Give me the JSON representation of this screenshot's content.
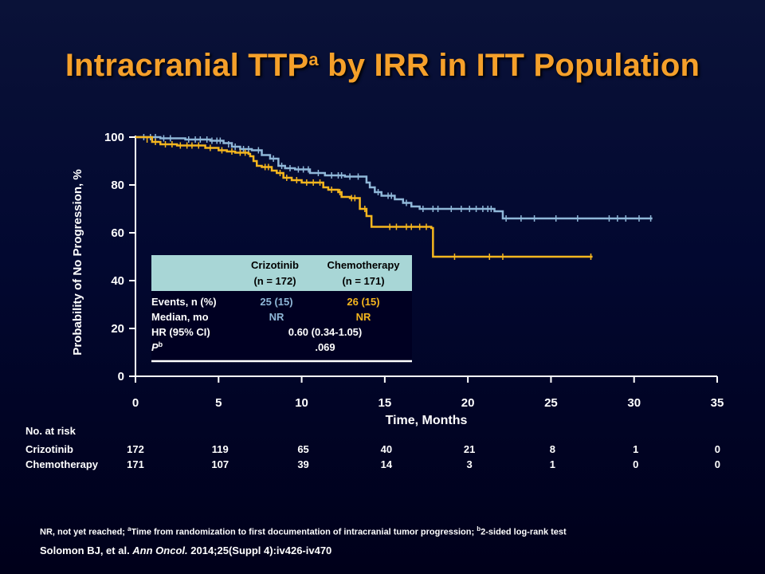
{
  "title": {
    "main": "Intracranial TTP",
    "sup": "a",
    "rest": " by IRR in ITT Population"
  },
  "chart_data": {
    "type": "line",
    "xlabel": "Time, Months",
    "ylabel": "Probability of No Progression, %",
    "xlim": [
      0,
      35
    ],
    "ylim": [
      0,
      100
    ],
    "xticks": [
      0,
      5,
      10,
      15,
      20,
      25,
      30,
      35
    ],
    "yticks": [
      0,
      20,
      40,
      60,
      80,
      100
    ],
    "series": [
      {
        "name": "Crizotinib",
        "color": "#8fb7d8",
        "steps": [
          [
            0,
            100
          ],
          [
            1.5,
            99.5
          ],
          [
            3,
            99
          ],
          [
            4.5,
            98.5
          ],
          [
            5.3,
            97.5
          ],
          [
            5.8,
            96
          ],
          [
            6.3,
            95
          ],
          [
            7,
            94.5
          ],
          [
            7.6,
            92.5
          ],
          [
            8.1,
            91
          ],
          [
            8.6,
            88
          ],
          [
            9,
            87
          ],
          [
            9.6,
            86.5
          ],
          [
            10.5,
            85
          ],
          [
            11.4,
            84
          ],
          [
            12.6,
            83.5
          ],
          [
            13.9,
            81
          ],
          [
            14.1,
            79
          ],
          [
            14.4,
            77
          ],
          [
            14.8,
            75.5
          ],
          [
            15.6,
            74
          ],
          [
            16.1,
            72.5
          ],
          [
            16.6,
            71
          ],
          [
            17.1,
            70
          ],
          [
            21.6,
            69
          ],
          [
            22.1,
            66
          ],
          [
            31.1,
            66
          ]
        ],
        "censors": [
          [
            0.5,
            100
          ],
          [
            0.9,
            100
          ],
          [
            1.2,
            100
          ],
          [
            1.7,
            99.5
          ],
          [
            2.1,
            99.5
          ],
          [
            3.2,
            99
          ],
          [
            3.6,
            99
          ],
          [
            3.9,
            99
          ],
          [
            4.3,
            99
          ],
          [
            4.6,
            98.5
          ],
          [
            4.9,
            98.5
          ],
          [
            5.1,
            98.5
          ],
          [
            5.6,
            97
          ],
          [
            6,
            96
          ],
          [
            6.5,
            95
          ],
          [
            6.8,
            95
          ],
          [
            7.4,
            94.5
          ],
          [
            8.3,
            91
          ],
          [
            8.8,
            88
          ],
          [
            9.3,
            87
          ],
          [
            9.8,
            86.5
          ],
          [
            10.1,
            86.5
          ],
          [
            10.4,
            86.5
          ],
          [
            11,
            85
          ],
          [
            11.8,
            84
          ],
          [
            12.2,
            84
          ],
          [
            12.4,
            84
          ],
          [
            12.9,
            83.5
          ],
          [
            13.4,
            83.5
          ],
          [
            14.6,
            77
          ],
          [
            15.2,
            75.5
          ],
          [
            15.4,
            75.5
          ],
          [
            16.3,
            72.5
          ],
          [
            17.3,
            70
          ],
          [
            17.9,
            70
          ],
          [
            18.2,
            70
          ],
          [
            19,
            70
          ],
          [
            19.6,
            70
          ],
          [
            20.1,
            70
          ],
          [
            20.5,
            70
          ],
          [
            20.9,
            70
          ],
          [
            21.2,
            70
          ],
          [
            21.4,
            70
          ],
          [
            22.3,
            66
          ],
          [
            23.2,
            66
          ],
          [
            24,
            66
          ],
          [
            25.3,
            66
          ],
          [
            26.6,
            66
          ],
          [
            28.5,
            66
          ],
          [
            29,
            66
          ],
          [
            29.5,
            66
          ],
          [
            30.3,
            66
          ],
          [
            31,
            66
          ]
        ]
      },
      {
        "name": "Chemotherapy",
        "color": "#f5b61e",
        "steps": [
          [
            0,
            100
          ],
          [
            1,
            98
          ],
          [
            1.5,
            97
          ],
          [
            2.5,
            96.5
          ],
          [
            4.2,
            95.5
          ],
          [
            5,
            94.5
          ],
          [
            5.5,
            94
          ],
          [
            6,
            93.5
          ],
          [
            6.8,
            93
          ],
          [
            6.9,
            92
          ],
          [
            7.1,
            90
          ],
          [
            7.3,
            88
          ],
          [
            7.6,
            87.5
          ],
          [
            8.2,
            86
          ],
          [
            8.5,
            85
          ],
          [
            8.9,
            83
          ],
          [
            9.4,
            82
          ],
          [
            10,
            81
          ],
          [
            11.3,
            79
          ],
          [
            11.6,
            78
          ],
          [
            12.2,
            77
          ],
          [
            12.4,
            75
          ],
          [
            12.9,
            74.5
          ],
          [
            13.5,
            70
          ],
          [
            13.9,
            67
          ],
          [
            14.2,
            62.5
          ],
          [
            17.8,
            62
          ],
          [
            17.9,
            50
          ],
          [
            27.5,
            50
          ]
        ],
        "censors": [
          [
            0.7,
            99
          ],
          [
            1.2,
            98
          ],
          [
            1.8,
            97
          ],
          [
            2.2,
            97
          ],
          [
            2.7,
            96.5
          ],
          [
            3.1,
            96.5
          ],
          [
            3.4,
            96.5
          ],
          [
            3.8,
            96.5
          ],
          [
            4.5,
            95.5
          ],
          [
            5.2,
            94.5
          ],
          [
            5.8,
            94
          ],
          [
            6.3,
            93.5
          ],
          [
            6.6,
            93.5
          ],
          [
            7.8,
            87.5
          ],
          [
            8,
            87.5
          ],
          [
            8.7,
            85
          ],
          [
            9.1,
            83
          ],
          [
            9.7,
            82
          ],
          [
            10.3,
            81
          ],
          [
            10.7,
            81
          ],
          [
            11.1,
            81
          ],
          [
            11.8,
            78
          ],
          [
            12.3,
            77
          ],
          [
            13,
            74.5
          ],
          [
            13.2,
            74.5
          ],
          [
            13.8,
            70
          ],
          [
            15.3,
            62.5
          ],
          [
            15.7,
            62.5
          ],
          [
            16.3,
            62.5
          ],
          [
            16.6,
            62.5
          ],
          [
            17.1,
            62.5
          ],
          [
            17.5,
            62.5
          ],
          [
            19.2,
            50
          ],
          [
            21.3,
            50
          ],
          [
            22.1,
            50
          ],
          [
            27.4,
            50
          ]
        ]
      }
    ],
    "table": {
      "headers": [
        {
          "line1": "Crizotinib",
          "line2": "(n = 172)"
        },
        {
          "line1": "Chemotherapy",
          "line2": "(n = 171)"
        }
      ],
      "rows": [
        {
          "label": "Events, n (%)",
          "crizotinib": "25 (15)",
          "chemotherapy": "26 (15)"
        },
        {
          "label": "Median, mo",
          "crizotinib": "NR",
          "chemotherapy": "NR"
        },
        {
          "label": "HR (95% CI)",
          "combined": "0.60 (0.34-1.05)"
        },
        {
          "label": "P",
          "label_sup": "b",
          "combined": ".069"
        }
      ]
    },
    "at_risk": {
      "heading": "No. at risk",
      "rows": [
        {
          "name": "Crizotinib",
          "values": [
            "172",
            "119",
            "65",
            "40",
            "21",
            "8",
            "1",
            "0"
          ]
        },
        {
          "name": "Chemotherapy",
          "values": [
            "171",
            "107",
            "39",
            "14",
            "3",
            "1",
            "0",
            "0"
          ]
        }
      ]
    }
  },
  "footnote": {
    "part1": "NR,  not yet reached; ",
    "sup_a": "a",
    "part2": "Time from randomization to first  documentation of intracranial tumor progression;  ",
    "sup_b": "b",
    "part3": "2-sided  log-rank test"
  },
  "citation": {
    "authors": "Solomon BJ, et al. ",
    "journal": "Ann Oncol.",
    "details": "  2014;25(Suppl 4):iv426-iv470"
  }
}
